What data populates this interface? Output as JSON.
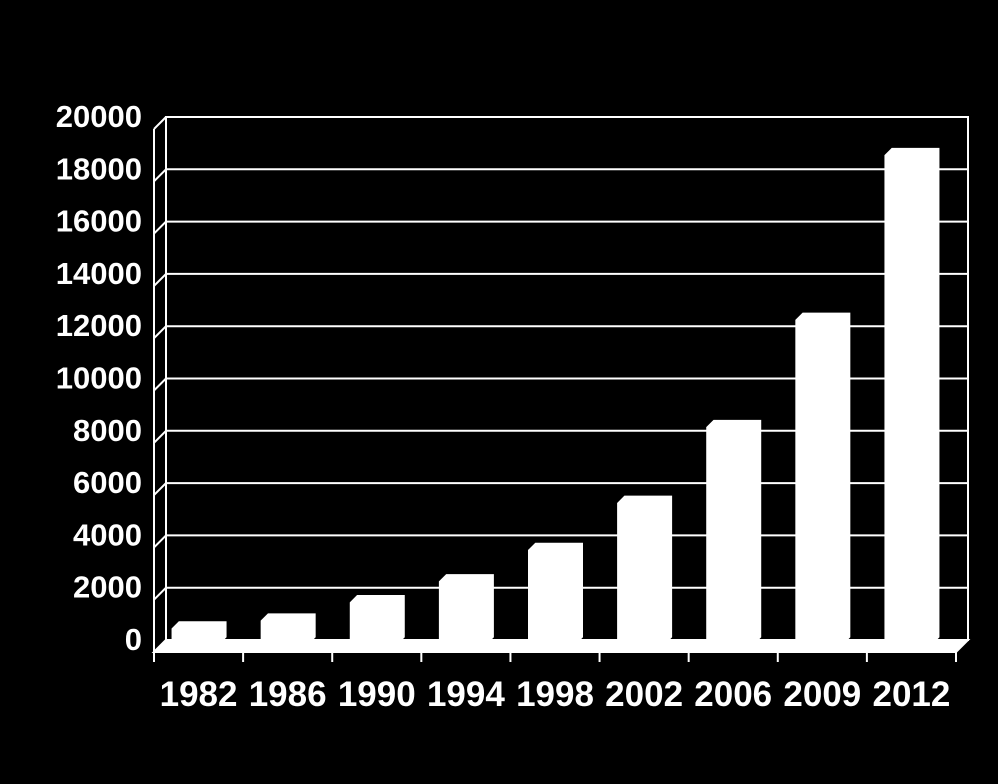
{
  "chart_data": {
    "type": "bar",
    "categories": [
      "1982",
      "1986",
      "1990",
      "1994",
      "1998",
      "2002",
      "2006",
      "2009",
      "2012"
    ],
    "values": [
      700,
      1000,
      1700,
      2500,
      3700,
      5500,
      8400,
      12500,
      18800
    ],
    "title": "",
    "xlabel": "",
    "ylabel": "",
    "ylim": [
      0,
      20000
    ],
    "yticks": [
      "0",
      "2000",
      "4000",
      "6000",
      "8000",
      "10000",
      "12000",
      "14000",
      "16000",
      "18000",
      "20000"
    ],
    "grid": true,
    "legend": "none",
    "colors": {
      "background": "#000000",
      "bar": "#ffffff",
      "grid": "#ffffff",
      "text": "#ffffff"
    }
  }
}
